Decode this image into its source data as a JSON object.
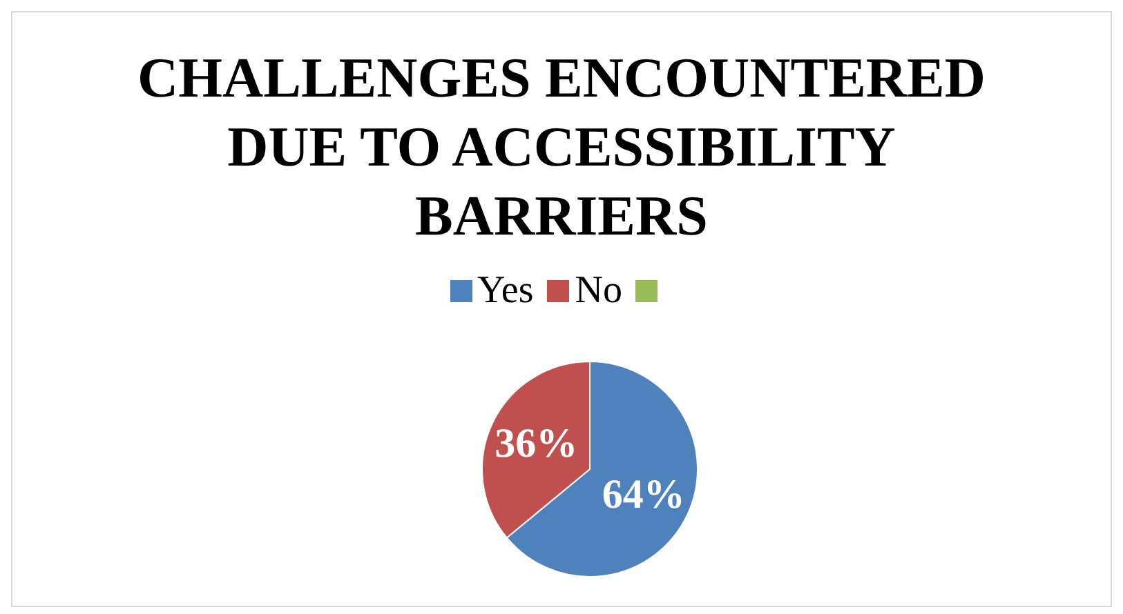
{
  "chart_data": {
    "type": "pie",
    "title": "CHALLENGES ENCOUNTERED DUE TO ACCESSIBILITY BARRIERS",
    "categories": [
      "Yes",
      "No",
      null
    ],
    "values": [
      64,
      36,
      0
    ],
    "colors": [
      "#4f81bd",
      "#c0504d",
      "#9bbb59"
    ],
    "value_labels": [
      "64%",
      "36%",
      null
    ],
    "legend": "top"
  }
}
